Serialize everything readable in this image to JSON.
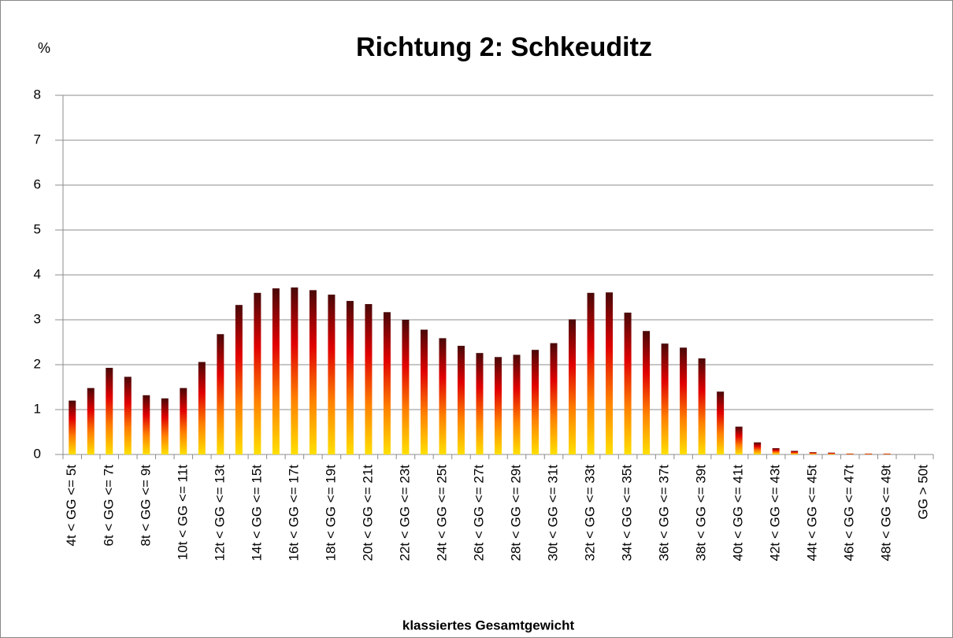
{
  "chart_data": {
    "type": "bar",
    "title": "Richtung 2: Schkeuditz",
    "y_label": "%",
    "x_label": "klassiertes Gesamtgewicht",
    "categories": [
      "4t < GG <= 5t",
      null,
      "6t < GG <= 7t",
      null,
      "8t < GG <= 9t",
      null,
      "10t < GG <= 11t",
      null,
      "12t < GG <= 13t",
      null,
      "14t < GG <= 15t",
      null,
      "16t < GG <= 17t",
      null,
      "18t < GG <= 19t",
      null,
      "20t < GG <= 21t",
      null,
      "22t < GG <= 23t",
      null,
      "24t < GG <= 25t",
      null,
      "26t < GG <= 27t",
      null,
      "28t < GG <= 29t",
      null,
      "30t < GG <= 31t",
      null,
      "32t < GG <= 33t",
      null,
      "34t < GG <= 35t",
      null,
      "36t < GG <= 37t",
      null,
      "38t < GG <= 39t",
      null,
      "40t < GG <= 41t",
      null,
      "42t < GG <= 43t",
      null,
      "44t < GG <= 45t",
      null,
      "46t < GG <= 47t",
      null,
      "48t < GG <= 49t",
      null,
      "GG > 50t"
    ],
    "values": [
      1.2,
      1.48,
      1.93,
      1.73,
      1.32,
      1.25,
      1.48,
      2.06,
      2.68,
      3.33,
      3.6,
      3.7,
      3.72,
      3.66,
      3.56,
      3.42,
      3.35,
      3.17,
      3.0,
      2.78,
      2.59,
      2.42,
      2.26,
      2.17,
      2.22,
      2.33,
      2.48,
      3.01,
      3.6,
      3.61,
      3.16,
      2.75,
      2.47,
      2.38,
      2.14,
      1.4,
      0.62,
      0.27,
      0.14,
      0.08,
      0.05,
      0.04,
      0.02,
      0.02,
      0.02,
      0,
      0
    ],
    "colors": [
      "#4a0808",
      "#e00000",
      "#ff8000",
      "#ffe000"
    ],
    "ylim": [
      0,
      8
    ],
    "yticks": [
      0,
      1,
      2,
      3,
      4,
      5,
      6,
      7,
      8
    ],
    "grid": true
  }
}
